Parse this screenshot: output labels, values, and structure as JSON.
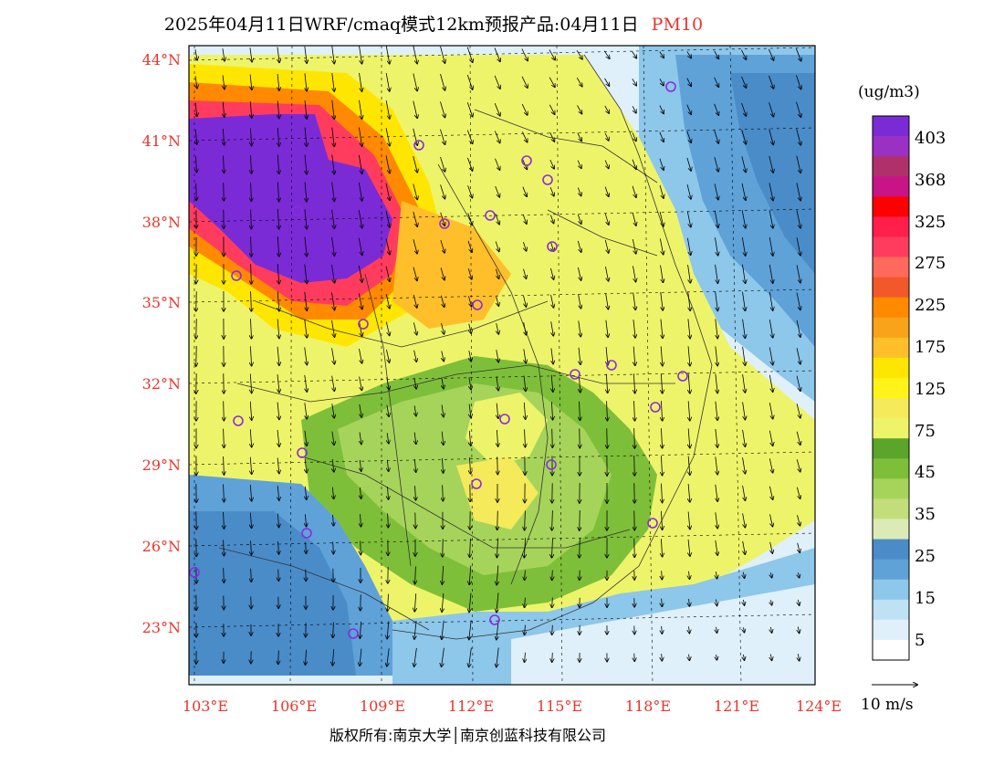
{
  "header": {
    "title": "2025年04月11日WRF/cmaq模式12km预报产品:04月11日",
    "variable": "PM10"
  },
  "lon_labels": [
    "103°E",
    "106°E",
    "109°E",
    "112°E",
    "115°E",
    "118°E",
    "121°E",
    "124°E"
  ],
  "lat_labels": [
    "44°N",
    "41°N",
    "38°N",
    "35°N",
    "32°N",
    "29°N",
    "26°N",
    "23°N"
  ],
  "colorbar": {
    "unit": "(ug/m3)",
    "labels": [
      "403",
      "368",
      "325",
      "275",
      "225",
      "175",
      "125",
      "75",
      "45",
      "35",
      "25",
      "15",
      "5"
    ],
    "colors": [
      "#7b2bd6",
      "#9b30c4",
      "#b0306a",
      "#c81486",
      "#ff0000",
      "#ff1f4a",
      "#ff3c5e",
      "#ff6a5a",
      "#f2582a",
      "#ff8a00",
      "#f9a31a",
      "#ffbf2a",
      "#ffe600",
      "#fff31a",
      "#f4ea5a",
      "#eef46a",
      "#5aa52a",
      "#7ebf3a",
      "#a6d45a",
      "#c2de7a",
      "#dcebb6",
      "#4a8cc8",
      "#5fa2d8",
      "#8dc7ea",
      "#bfe1f4",
      "#dff0fa",
      "#ffffff"
    ]
  },
  "wind_reference": "10 m/s",
  "footer": {
    "copyright": "版权所有:南京大学│南京创蓝科技有限公司"
  },
  "map": {
    "domain": "WRF/cmaq 12km",
    "extent_lon": [
      103,
      124
    ],
    "extent_lat": [
      21,
      44
    ],
    "overlays": [
      "pm10-concentration-fill",
      "wind-vectors",
      "province-boundaries",
      "city-station-markers"
    ]
  }
}
